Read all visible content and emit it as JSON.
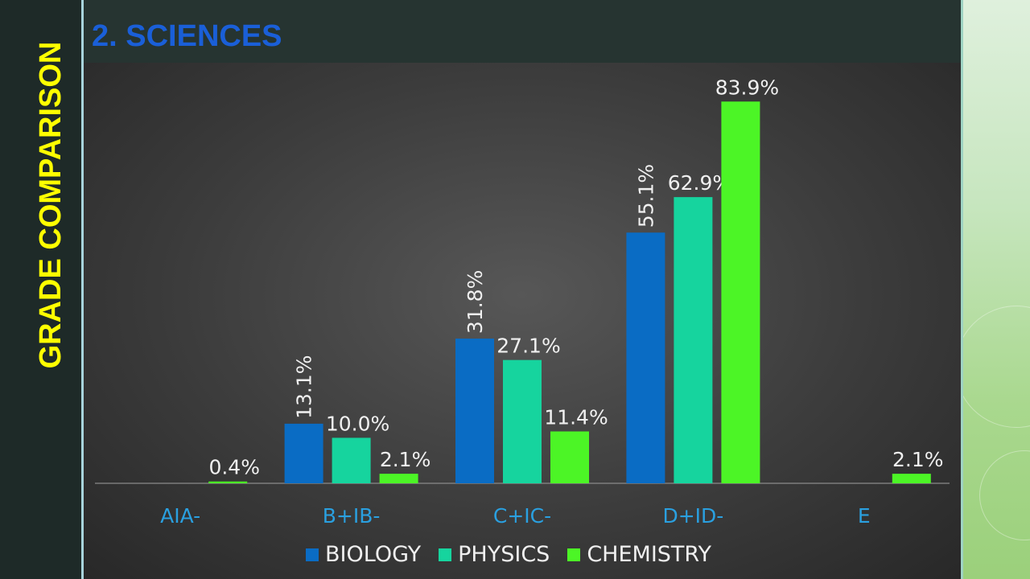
{
  "side_title": "GRADE COMPARISON",
  "header": {
    "title": "2. SCIENCES"
  },
  "colors": {
    "biology": "#0a6cc4",
    "physics": "#16d49e",
    "chemistry": "#4cf526",
    "side_title": "#ffff00",
    "header_title": "#1a5fd8",
    "category_label": "#2aa0e0",
    "value_label": "#f0f0f0"
  },
  "chart_data": {
    "type": "bar",
    "categories": [
      "AIA-",
      "B+IB-",
      "C+IC-",
      "D+ID-",
      "E"
    ],
    "series": [
      {
        "name": "BIOLOGY",
        "values": [
          null,
          13.1,
          31.8,
          55.1,
          null
        ],
        "labels": [
          null,
          "13.1%",
          "31.8%",
          "55.1%",
          null
        ]
      },
      {
        "name": "PHYSICS",
        "values": [
          null,
          10.0,
          27.1,
          62.9,
          null
        ],
        "labels": [
          null,
          "10.0%",
          "27.1%",
          "62.9%",
          null
        ]
      },
      {
        "name": "CHEMISTRY",
        "values": [
          0.4,
          2.1,
          11.4,
          83.9,
          2.1
        ],
        "labels": [
          "0.4%",
          "2.1%",
          "11.4%",
          "83.9%",
          "2.1%"
        ]
      }
    ],
    "value_unit": "%",
    "ylim": [
      0,
      90
    ],
    "grid": false,
    "legend": "bottom",
    "title": "",
    "xlabel": "",
    "ylabel": ""
  }
}
